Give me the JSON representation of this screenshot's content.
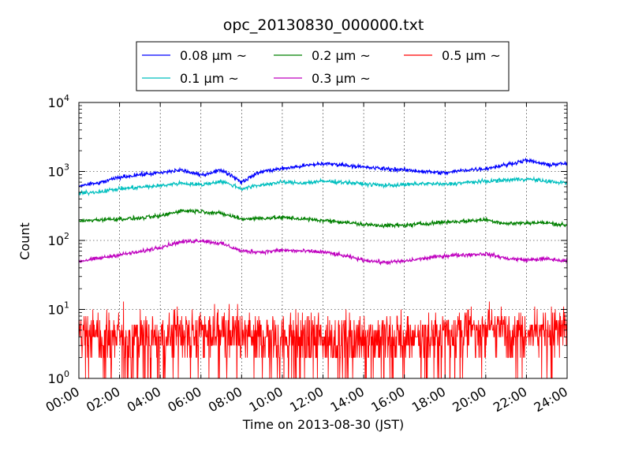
{
  "chart_data": {
    "type": "line",
    "title": "opc_20130830_000000.txt",
    "xlabel": "Time on 2013-08-30 (JST)",
    "ylabel": "Count",
    "xlim": [
      "2013-08-30 00:00",
      "2013-08-31 00:00"
    ],
    "ylim": [
      1,
      10000
    ],
    "yscale": "log",
    "grid": true,
    "legend_position": "top-center",
    "x_ticks": [
      "00:00",
      "02:00",
      "04:00",
      "06:00",
      "08:00",
      "10:00",
      "12:00",
      "14:00",
      "16:00",
      "18:00",
      "20:00",
      "22:00",
      "24:00"
    ],
    "y_tick_bases": [
      "10",
      "10",
      "10",
      "10",
      "10"
    ],
    "y_tick_exps": [
      "0",
      "1",
      "2",
      "3",
      "4"
    ],
    "y_tick_values": [
      1,
      10,
      100,
      1000,
      10000
    ],
    "x_hours": [
      0,
      1,
      2,
      3,
      4,
      5,
      6,
      7,
      8,
      9,
      10,
      11,
      12,
      13,
      14,
      15,
      16,
      17,
      18,
      19,
      20,
      21,
      22,
      23,
      24
    ],
    "series": [
      {
        "name": "0.08 μm ~",
        "color": "#0000ff",
        "style": "smooth",
        "values": [
          620,
          680,
          820,
          900,
          950,
          1050,
          880,
          1050,
          700,
          1000,
          1100,
          1200,
          1300,
          1250,
          1150,
          1100,
          1050,
          1000,
          950,
          1050,
          1100,
          1250,
          1450,
          1250,
          1300
        ]
      },
      {
        "name": "0.1 μm ~",
        "color": "#00bfbf",
        "style": "smooth",
        "values": [
          480,
          510,
          560,
          590,
          620,
          680,
          640,
          720,
          560,
          640,
          700,
          680,
          720,
          700,
          660,
          630,
          640,
          670,
          650,
          690,
          720,
          750,
          780,
          720,
          680
        ]
      },
      {
        "name": "0.2 μm ~",
        "color": "#008000",
        "style": "smooth",
        "values": [
          190,
          200,
          205,
          210,
          225,
          270,
          265,
          245,
          205,
          210,
          215,
          205,
          195,
          185,
          170,
          165,
          165,
          175,
          185,
          190,
          200,
          175,
          180,
          180,
          165
        ]
      },
      {
        "name": "0.3 μm ~",
        "color": "#bf00bf",
        "style": "smooth",
        "values": [
          50,
          55,
          62,
          68,
          80,
          95,
          100,
          90,
          70,
          68,
          72,
          70,
          68,
          60,
          52,
          48,
          50,
          55,
          60,
          62,
          64,
          55,
          52,
          54,
          50
        ]
      },
      {
        "name": "0.5 μm ~",
        "color": "#ff0000",
        "style": "noisy",
        "values": [
          4,
          4,
          4,
          4,
          4,
          5,
          5,
          5,
          4,
          4,
          4,
          4,
          4,
          4,
          4,
          4,
          4,
          4,
          5,
          5,
          6,
          5,
          5,
          5,
          5
        ]
      }
    ]
  }
}
